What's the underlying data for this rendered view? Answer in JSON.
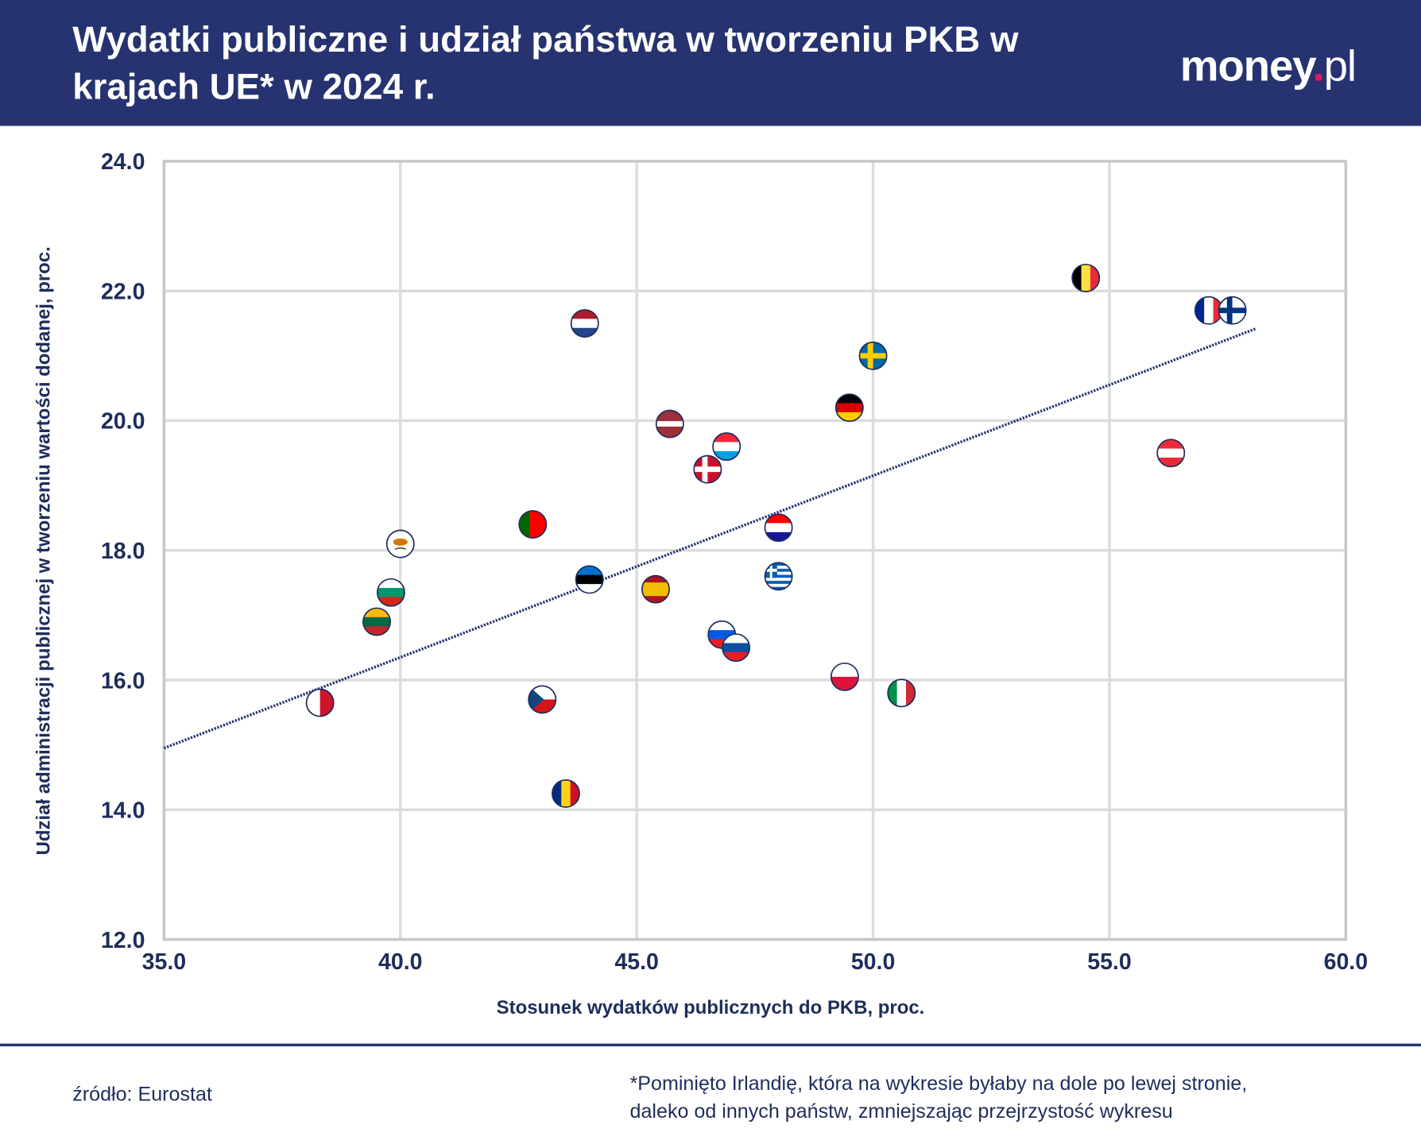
{
  "header": {
    "title": "Wydatki publiczne i udział państwa w tworzeniu PKB w krajach UE* w 2024 r.",
    "logo_text": "money",
    "logo_dot": ".",
    "logo_suffix": "pl"
  },
  "chart_data": {
    "type": "scatter",
    "title": "Wydatki publiczne i udział państwa w tworzeniu PKB w krajach UE* w 2024 r.",
    "xlabel": "Stosunek wydatków publicznych do PKB, proc.",
    "ylabel": "Udział administracji publicznej w tworzeniu wartości dodanej, proc.",
    "xlim": [
      35,
      60
    ],
    "ylim": [
      12,
      24
    ],
    "xticks": [
      "35.0",
      "40.0",
      "45.0",
      "50.0",
      "55.0",
      "60.0"
    ],
    "yticks": [
      "12.0",
      "14.0",
      "16.0",
      "18.0",
      "20.0",
      "22.0",
      "24.0"
    ],
    "grid": true,
    "marker": "country-flag",
    "trendline": {
      "x": [
        35,
        58.1
      ],
      "y": [
        14.95,
        21.42
      ],
      "color": "#263370",
      "style": "dotted"
    },
    "points": [
      {
        "flag": "belgium",
        "x": 54.5,
        "y": 22.2
      },
      {
        "flag": "france",
        "x": 57.1,
        "y": 21.7
      },
      {
        "flag": "finland",
        "x": 57.6,
        "y": 21.7
      },
      {
        "flag": "netherlands",
        "x": 43.9,
        "y": 21.5
      },
      {
        "flag": "sweden",
        "x": 50.0,
        "y": 21.0
      },
      {
        "flag": "germany",
        "x": 49.5,
        "y": 20.2
      },
      {
        "flag": "latvia",
        "x": 45.7,
        "y": 19.95
      },
      {
        "flag": "luxembourg",
        "x": 46.9,
        "y": 19.6
      },
      {
        "flag": "austria",
        "x": 56.3,
        "y": 19.5
      },
      {
        "flag": "denmark",
        "x": 46.5,
        "y": 19.25
      },
      {
        "flag": "portugal",
        "x": 42.8,
        "y": 18.4
      },
      {
        "flag": "croatia",
        "x": 48.0,
        "y": 18.35
      },
      {
        "flag": "cyprus",
        "x": 40.0,
        "y": 18.1
      },
      {
        "flag": "greece",
        "x": 48.0,
        "y": 17.6
      },
      {
        "flag": "estonia",
        "x": 44.0,
        "y": 17.55
      },
      {
        "flag": "spain",
        "x": 45.4,
        "y": 17.4
      },
      {
        "flag": "bulgaria",
        "x": 39.8,
        "y": 17.35
      },
      {
        "flag": "lithuania",
        "x": 39.5,
        "y": 16.9
      },
      {
        "flag": "slovenia",
        "x": 46.8,
        "y": 16.7
      },
      {
        "flag": "slovakia",
        "x": 47.1,
        "y": 16.5
      },
      {
        "flag": "poland",
        "x": 49.4,
        "y": 16.05
      },
      {
        "flag": "italy",
        "x": 50.6,
        "y": 15.8
      },
      {
        "flag": "czechia",
        "x": 43.0,
        "y": 15.7
      },
      {
        "flag": "malta",
        "x": 38.3,
        "y": 15.65
      },
      {
        "flag": "romania",
        "x": 43.5,
        "y": 14.25
      }
    ]
  },
  "footer": {
    "source": "źródło: Eurostat",
    "note_line1": "*Pominięto Irlandię, która na wykresie byłaby na dole po lewej stronie,",
    "note_line2": "daleko od innych państw, zmniejszając przejrzystość wykresu"
  },
  "colors": {
    "header": "#263370",
    "text": "#1f2d5c",
    "grid": "#dcdcdc",
    "logo_dot": "#e5195e"
  }
}
